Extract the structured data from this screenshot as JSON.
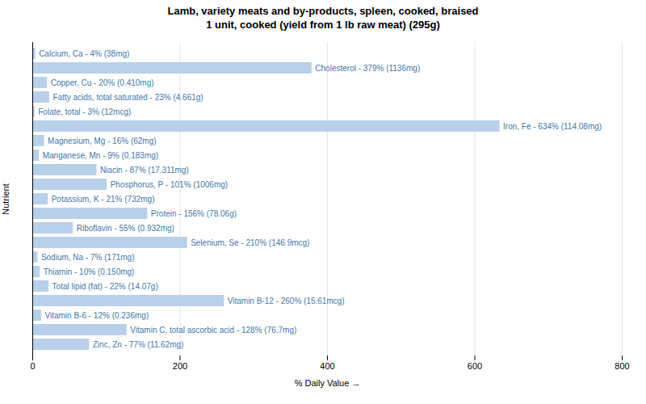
{
  "chart_data": {
    "type": "bar",
    "orientation": "horizontal",
    "title": "Lamb, variety meats and by-products, spleen, cooked, braised\n1 unit, cooked (yield from 1 lb raw meat) (295g)",
    "xlabel": "% Daily Value",
    "ylabel": "Nutrient",
    "categories": [
      "Calcium, Ca - 4% (38mg)",
      "Cholesterol - 379% (1136mg)",
      "Copper, Cu - 20% (0.410mg)",
      "Fatty acids, total saturated - 23% (4.661g)",
      "Folate, total - 3% (12mcg)",
      "Iron, Fe - 634% (114.08mg)",
      "Magnesium, Mg - 16% (62mg)",
      "Manganese, Mn - 9% (0.183mg)",
      "Niacin - 87% (17.311mg)",
      "Phosphorus, P - 101% (1006mg)",
      "Potassium, K - 21% (732mg)",
      "Protein - 156% (78.06g)",
      "Riboflavin - 55% (0.932mg)",
      "Selenium, Se - 210% (146.9mcg)",
      "Sodium, Na - 7% (171mg)",
      "Thiamin - 10% (0.150mg)",
      "Total lipid (fat) - 22% (14.07g)",
      "Vitamin B-12 - 260% (15.61mcg)",
      "Vitamin B-6 - 12% (0.236mg)",
      "Vitamin C, total ascorbic acid - 128% (76.7mg)",
      "Zinc, Zn - 77% (11.62mg)"
    ],
    "values": [
      4,
      379,
      20,
      23,
      3,
      634,
      16,
      9,
      87,
      101,
      21,
      156,
      55,
      210,
      7,
      10,
      22,
      260,
      12,
      128,
      77
    ],
    "color": "#b8d0ea",
    "xlim": [
      0,
      800
    ],
    "xticks": [
      0,
      200,
      400,
      600,
      800
    ],
    "grid": true,
    "tick_labels": "x"
  }
}
